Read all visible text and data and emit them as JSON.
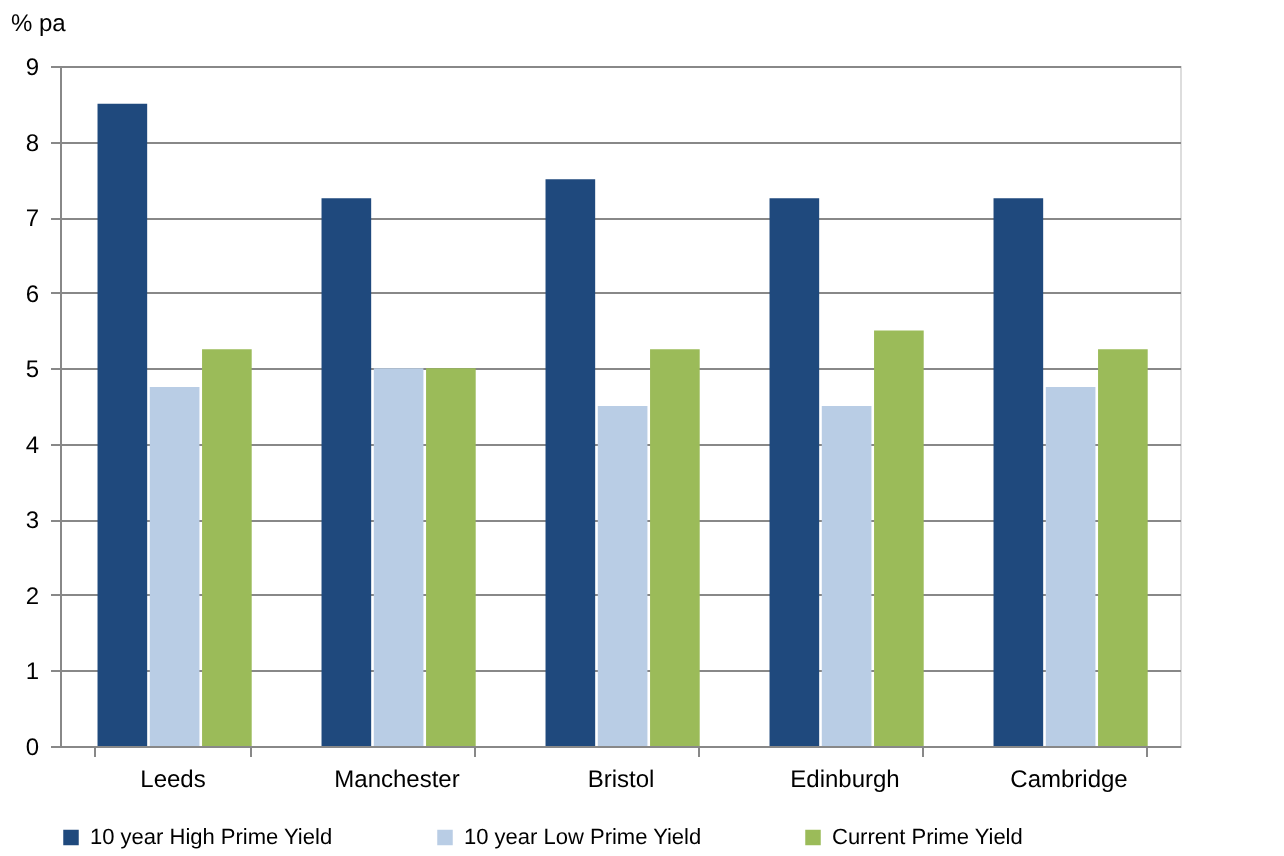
{
  "chart_data": {
    "type": "bar",
    "ylabel": "% pa",
    "categories": [
      "Leeds",
      "Manchester",
      "Bristol",
      "Edinburgh",
      "Cambridge"
    ],
    "series": [
      {
        "name": "10 year High Prime Yield",
        "color": "#1f497d",
        "values": [
          8.5,
          7.25,
          7.5,
          7.25,
          7.25
        ]
      },
      {
        "name": "10 year Low Prime Yield",
        "color": "#b9cde5",
        "values": [
          4.75,
          5,
          4.5,
          4.5,
          4.75
        ]
      },
      {
        "name": "Current Prime Yield",
        "color": "#9bbb59",
        "values": [
          5.25,
          5,
          5.25,
          5.5,
          5.25
        ]
      }
    ],
    "ylim": [
      0,
      9
    ],
    "yticks": [
      0,
      1,
      2,
      3,
      4,
      5,
      6,
      7,
      8,
      9
    ],
    "grid": "y",
    "legend": "bottom"
  }
}
